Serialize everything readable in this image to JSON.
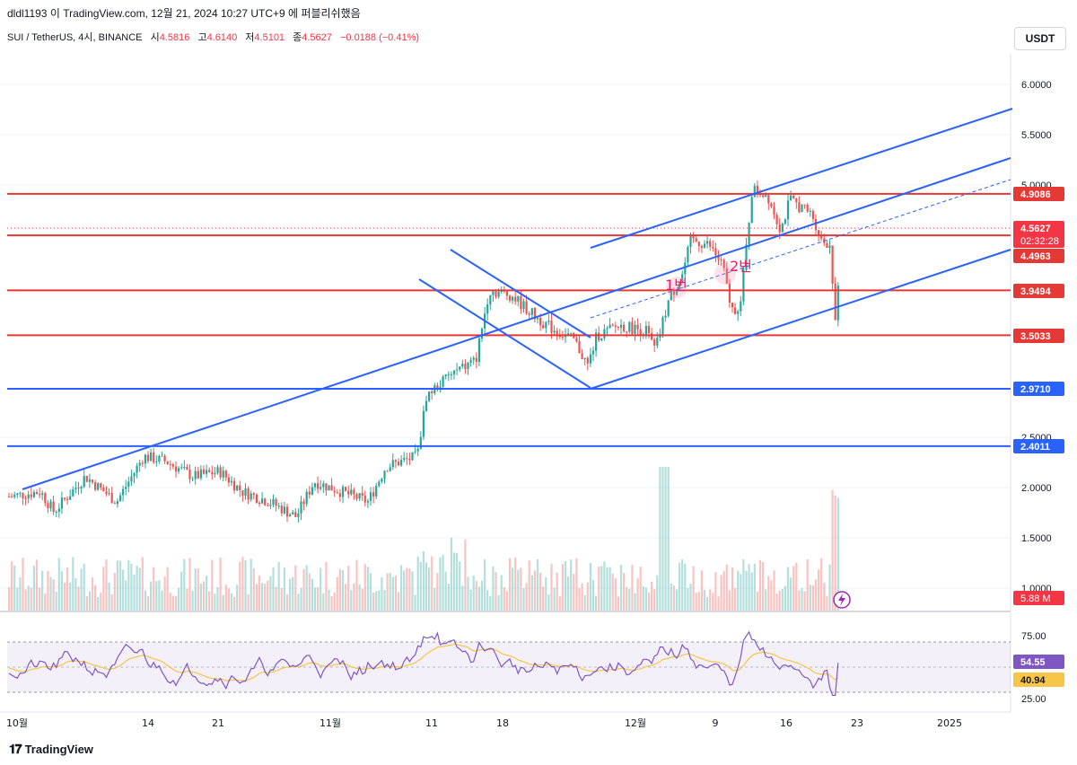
{
  "header": {
    "line1": "dldl1193 이 TradingView.com, 12월 21, 2024 10:27 UTC+9 에 퍼블리쉬했음",
    "symbol": "SUI / TetherUS, 4시, BINANCE",
    "open_label": "시",
    "open": "4.5816",
    "high_label": "고",
    "high": "4.6140",
    "low_label": "저",
    "low": "4.5101",
    "close_label": "종",
    "close": "4.5627",
    "change": "−0.0188 (−0.41%)"
  },
  "currency_button": "USDT",
  "footer": {
    "brand": "TradingView",
    "logo_icon": "tradingview-logo-icon"
  },
  "colors": {
    "up": "#26a69a",
    "down": "#ef5350",
    "hline_red": "#e53935",
    "hline_blue": "#2962ff",
    "trend": "#2962ff",
    "rsi": "#7e57c2",
    "rsi_ma": "#f7c548"
  },
  "chart_data": {
    "type": "candlestick",
    "price_axis": {
      "ticks": [
        "6.0000",
        "5.5000",
        "5.0000",
        "2.5000",
        "2.0000",
        "1.5000",
        "1.0000"
      ],
      "ylim": [
        1.0,
        6.0
      ]
    },
    "x_axis": {
      "ticks": [
        "10월",
        "14",
        "21",
        "11월",
        "11",
        "18",
        "12월",
        "9",
        "16",
        "23",
        "2025"
      ]
    },
    "horizontal_levels": [
      {
        "value": 4.9086,
        "label": "4.9086",
        "color": "red"
      },
      {
        "value": 4.4963,
        "label": "4.4963",
        "color": "red"
      },
      {
        "value": 3.9494,
        "label": "3.9494",
        "color": "red"
      },
      {
        "value": 3.5033,
        "label": "3.5033",
        "color": "red"
      },
      {
        "value": 2.971,
        "label": "2.9710",
        "color": "blue"
      },
      {
        "value": 2.4011,
        "label": "2.4011",
        "color": "blue"
      }
    ],
    "current_price": {
      "label": "4.5627",
      "countdown": "02:32:28"
    },
    "volume_label": "5.88 M",
    "annotations": [
      "1번",
      "2번"
    ],
    "rsi": {
      "ticks": [
        "75.00",
        "25.00"
      ],
      "rsi_value": "54.55",
      "ma_value": "40.94",
      "ylim": [
        15,
        95
      ]
    }
  }
}
